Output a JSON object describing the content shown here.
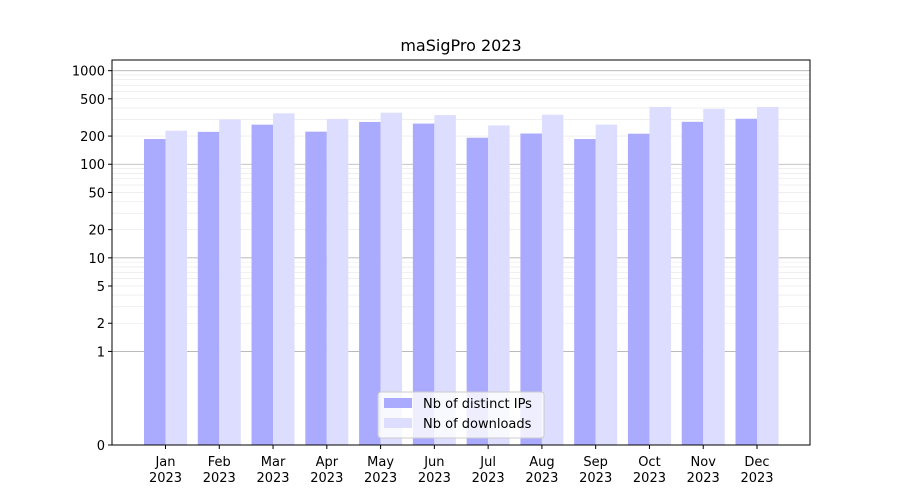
{
  "chart_data": {
    "type": "bar",
    "title": "maSigPro 2023",
    "xlabel": "",
    "ylabel": "",
    "yscale": "symlog",
    "ylim": [
      0,
      1300
    ],
    "yticks": [
      0,
      1,
      2,
      5,
      10,
      20,
      50,
      100,
      200,
      500,
      1000
    ],
    "ytick_labels": [
      "0",
      "1",
      "2",
      "5",
      "10",
      "20",
      "50",
      "100",
      "200",
      "500",
      "1000"
    ],
    "categories": [
      "Jan\n2023",
      "Feb\n2023",
      "Mar\n2023",
      "Apr\n2023",
      "May\n2023",
      "Jun\n2023",
      "Jul\n2023",
      "Aug\n2023",
      "Sep\n2023",
      "Oct\n2023",
      "Nov\n2023",
      "Dec\n2023"
    ],
    "series": [
      {
        "name": "Nb of distinct IPs",
        "color": "#aaaaff",
        "values": [
          186,
          222,
          265,
          223,
          283,
          272,
          192,
          213,
          186,
          212,
          284,
          306
        ]
      },
      {
        "name": "Nb of downloads",
        "color": "#ddddff",
        "values": [
          228,
          302,
          350,
          305,
          355,
          335,
          260,
          338,
          265,
          410,
          390,
          410
        ]
      }
    ],
    "grid": true,
    "legend_position": "bottom-center"
  }
}
